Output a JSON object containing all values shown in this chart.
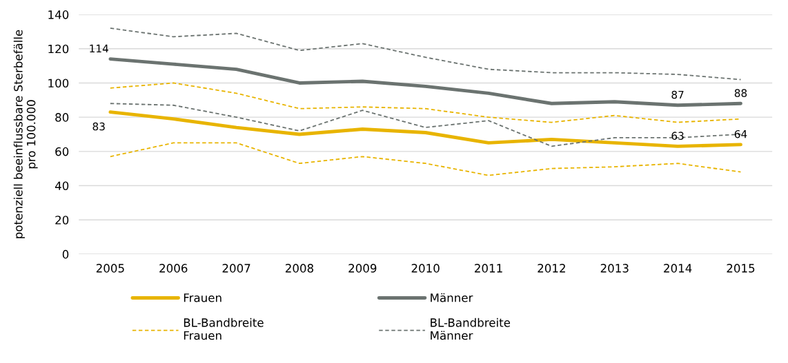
{
  "chart_data": {
    "type": "line",
    "ylabel": "potenziell beeinflussbare Sterbefälle\npro 100.000",
    "categories": [
      "2005",
      "2006",
      "2007",
      "2008",
      "2009",
      "2010",
      "2011",
      "2012",
      "2013",
      "2014",
      "2015"
    ],
    "series": [
      {
        "name": "Frauen",
        "color": "#e8b400",
        "values": [
          83,
          79,
          74,
          70,
          73,
          71,
          65,
          67,
          65,
          63,
          64
        ],
        "value_labels": [
          "83",
          null,
          null,
          null,
          null,
          null,
          null,
          null,
          null,
          "63",
          "64"
        ],
        "line_style": "solid"
      },
      {
        "name": "Männer",
        "color": "#6b7370",
        "values": [
          114,
          111,
          108,
          100,
          101,
          98,
          94,
          88,
          89,
          87,
          88
        ],
        "value_labels": [
          "114",
          null,
          null,
          null,
          null,
          null,
          null,
          null,
          null,
          "87",
          "88"
        ],
        "line_style": "solid"
      },
      {
        "name": "BL-Bandbreite\nFrauen",
        "color": "#e8b400",
        "values": [
          97,
          100,
          94,
          85,
          86,
          85,
          80,
          77,
          81,
          77,
          79
        ],
        "line_style": "dashed"
      },
      {
        "name": null,
        "color": "#e8b400",
        "values": [
          57,
          65,
          65,
          53,
          57,
          53,
          46,
          50,
          51,
          53,
          48
        ],
        "line_style": "dashed"
      },
      {
        "name": "BL-Bandbreite\nMänner",
        "color": "#6b7370",
        "values": [
          132,
          127,
          129,
          119,
          123,
          115,
          108,
          106,
          106,
          105,
          102
        ],
        "line_style": "dashed"
      },
      {
        "name": null,
        "color": "#6b7370",
        "values": [
          88,
          87,
          80,
          72,
          84,
          74,
          78,
          63,
          68,
          68,
          70
        ],
        "line_style": "dashed"
      }
    ],
    "ylim": [
      0,
      140
    ],
    "yticks": [
      0,
      20,
      40,
      60,
      80,
      100,
      120,
      140
    ],
    "grid": "y",
    "legend": "bottom",
    "marker": "none"
  }
}
